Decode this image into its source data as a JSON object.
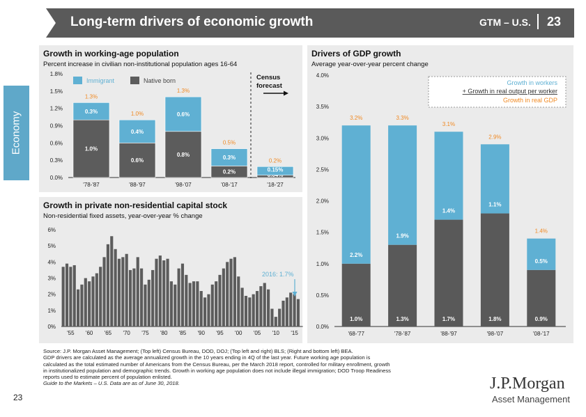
{
  "header": {
    "title": "Long-term drivers of economic growth",
    "gtm": "GTM – U.S.",
    "page": "23"
  },
  "section_tab": "Economy",
  "footer_page": "23",
  "sources": {
    "line1": "Source: J.P. Morgan Asset Management; (Top left) Census Bureau, DOD, DOJ; (Top left and right) BLS; (Right and bottom left) BEA.",
    "line2": "GDP drivers are calculated as the average annualized growth in the 10 years ending in 4Q of the last year. Future working age population is",
    "line3": "calculated as the total estimated number of Americans from the Census Bureau, per the March 2018 report, controlled for military enrollment, growth",
    "line4": "in institutionalized population and demographic trends. Growth in working age population does not include illegal immigration; DOD Troop Readiness",
    "line5": "reports used to estimate percent of population enlisted.",
    "line6": "Guide to the Markets – U.S. Data are as of June 30, 2018."
  },
  "logo": {
    "name": "J.P.Morgan",
    "sub": "Asset Management"
  },
  "colors": {
    "immigrant": "#5fb0d3",
    "native": "#5c5c5c",
    "orange": "#f08a24",
    "workers": "#5fb0d3",
    "output": "#595959",
    "banner": "#5a5a5a"
  },
  "chart_data": [
    {
      "type": "bar",
      "stacked": true,
      "title": "Growth in working-age population",
      "subtitle": "Percent increase in civilian non-institutional population ages 16-64",
      "categories": [
        "'78-'87",
        "'88-'97",
        "'98-'07",
        "'08-'17",
        "'18-'27"
      ],
      "series": [
        {
          "name": "Native born",
          "values": [
            1.0,
            0.6,
            0.8,
            0.2,
            0.04
          ],
          "labels": [
            "1.0%",
            "0.6%",
            "0.8%",
            "0.2%",
            "0.04%"
          ]
        },
        {
          "name": "Immigrant",
          "values": [
            0.3,
            0.4,
            0.6,
            0.3,
            0.15
          ],
          "labels": [
            "0.3%",
            "0.4%",
            "0.6%",
            "0.3%",
            "0.15%"
          ]
        }
      ],
      "totals": [
        "1.3%",
        "1.0%",
        "1.3%",
        "0.5%",
        "0.2%"
      ],
      "ylim": [
        0,
        1.8
      ],
      "yticks": [
        "0.0%",
        "0.3%",
        "0.6%",
        "0.9%",
        "1.2%",
        "1.5%",
        "1.8%"
      ],
      "annotation": "Census forecast"
    },
    {
      "type": "bar",
      "title": "Growth in private non-residential capital stock",
      "subtitle": "Non-residential fixed assets, year-over-year % change",
      "x_start": 1953,
      "values": [
        3.7,
        3.9,
        3.7,
        3.8,
        2.3,
        2.6,
        3.0,
        2.8,
        3.1,
        3.3,
        3.7,
        4.3,
        5.1,
        5.6,
        4.8,
        4.2,
        4.3,
        4.5,
        3.5,
        3.6,
        4.3,
        3.6,
        2.6,
        2.9,
        3.5,
        4.2,
        4.4,
        4.1,
        4.2,
        2.8,
        2.6,
        3.6,
        3.9,
        3.2,
        2.7,
        2.8,
        2.8,
        2.2,
        1.8,
        2.0,
        2.6,
        2.8,
        3.2,
        3.6,
        4.0,
        4.2,
        4.3,
        3.1,
        2.4,
        1.9,
        1.8,
        2.0,
        2.2,
        2.5,
        2.7,
        2.3,
        1.1,
        0.6,
        1.1,
        1.6,
        1.8,
        2.1,
        2.0,
        1.7
      ],
      "highlight_label": "2016: 1.7%",
      "ylim": [
        0,
        6
      ],
      "yticks": [
        "0%",
        "1%",
        "2%",
        "3%",
        "4%",
        "5%",
        "6%"
      ],
      "xticks": [
        "'55",
        "'60",
        "'65",
        "'70",
        "'75",
        "'80",
        "'85",
        "'90",
        "'95",
        "'00",
        "'05",
        "'10",
        "'15"
      ]
    },
    {
      "type": "bar",
      "stacked": true,
      "title": "Drivers of GDP growth",
      "subtitle": "Average year-over-year percent change",
      "categories": [
        "'68-'77",
        "'78-'87",
        "'88-'97",
        "'98-'07",
        "'08-'17"
      ],
      "series": [
        {
          "name": "Growth in workers",
          "values": [
            1.0,
            1.3,
            1.7,
            1.8,
            0.9
          ],
          "labels": [
            "1.0%",
            "1.3%",
            "1.7%",
            "1.8%",
            "0.9%"
          ]
        },
        {
          "name": "+ Growth in real output per worker",
          "values": [
            2.2,
            1.9,
            1.4,
            1.1,
            0.5
          ],
          "labels": [
            "2.2%",
            "1.9%",
            "1.4%",
            "1.1%",
            "0.5%"
          ]
        }
      ],
      "totals": [
        "3.2%",
        "3.3%",
        "3.1%",
        "2.9%",
        "1.4%"
      ],
      "total_series_name": "Growth in real GDP",
      "ylim": [
        0,
        4
      ],
      "yticks": [
        "0.0%",
        "0.5%",
        "1.0%",
        "1.5%",
        "2.0%",
        "2.5%",
        "3.0%",
        "3.5%",
        "4.0%"
      ]
    }
  ]
}
